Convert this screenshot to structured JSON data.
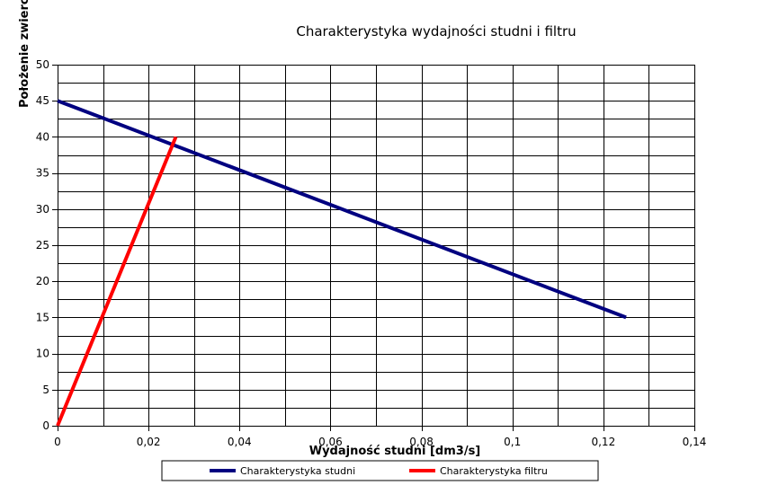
{
  "chart_data": {
    "type": "line",
    "title": "Charakterystyka wydajności studni i filtru",
    "xlabel": "Wydajność studni [dm3/s]",
    "ylabel": "Położenie zwierc",
    "xlim": [
      0,
      0.14
    ],
    "ylim": [
      0,
      50
    ],
    "x_ticks": [
      0,
      0.02,
      0.04,
      0.06,
      0.08,
      0.1,
      0.12,
      0.14
    ],
    "x_tick_labels": [
      "0",
      "0,02",
      "0,04",
      "0,06",
      "0,08",
      "0,1",
      "0,12",
      "0,14"
    ],
    "y_ticks": [
      0,
      5,
      10,
      15,
      20,
      25,
      30,
      35,
      40,
      45,
      50
    ],
    "y_tick_labels": [
      "0",
      "5",
      "10",
      "15",
      "20",
      "25",
      "30",
      "35",
      "40",
      "45",
      "50"
    ],
    "x_grid_step": 0.01,
    "y_grid_step": 2.5,
    "grid": true,
    "legend_position": "bottom",
    "series": [
      {
        "name": "Charakterystyka studni",
        "color": "#000080",
        "x": [
          0,
          0.125
        ],
        "y": [
          45,
          15
        ]
      },
      {
        "name": "Charakterystyka filtru",
        "color": "#ff0000",
        "x": [
          0,
          0.026
        ],
        "y": [
          0,
          40
        ]
      }
    ]
  }
}
